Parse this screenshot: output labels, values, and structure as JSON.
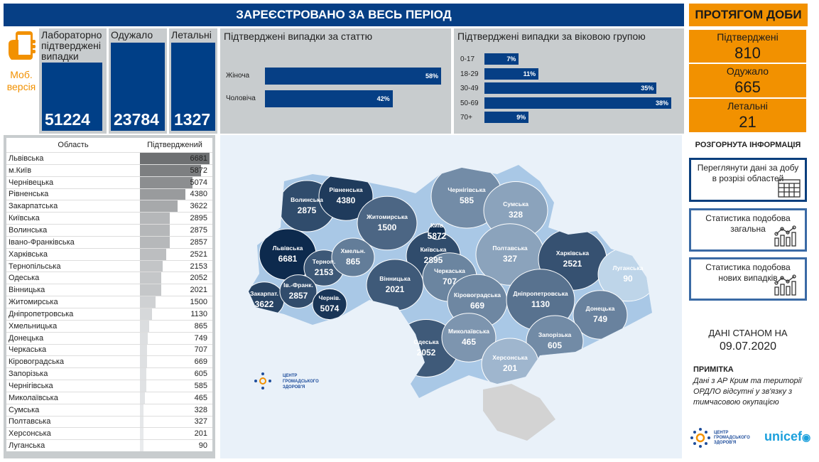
{
  "header": {
    "title": "ЗАРЕЄСТРОВАНО ЗА ВЕСЬ ПЕРІОД",
    "daily_title": "ПРОТЯГОМ ДОБИ"
  },
  "mobile": {
    "label": "Моб. версія",
    "icon": "smartphone-hand-icon"
  },
  "kpis": [
    {
      "label": "Лабораторно підтверджені випадки",
      "value": "51224"
    },
    {
      "label": "Одужало",
      "value": "23784"
    },
    {
      "label": "Летальні",
      "value": "1327"
    }
  ],
  "gender": {
    "title": "Підтверджені випадки за статтю",
    "items": [
      {
        "label": "Жіноча",
        "pct": 58,
        "text": "58%"
      },
      {
        "label": "Чоловіча",
        "pct": 42,
        "text": "42%"
      }
    ]
  },
  "age": {
    "title": "Підтверджені випадки за віковою групою",
    "items": [
      {
        "label": "0-17",
        "pct": 7,
        "text": "7%"
      },
      {
        "label": "18-29",
        "pct": 11,
        "text": "11%"
      },
      {
        "label": "30-49",
        "pct": 35,
        "text": "35%"
      },
      {
        "label": "50-69",
        "pct": 38,
        "text": "38%"
      },
      {
        "label": "70+",
        "pct": 9,
        "text": "9%"
      }
    ]
  },
  "daily": [
    {
      "label": "Підтверджені",
      "value": "810"
    },
    {
      "label": "Одужало",
      "value": "665"
    },
    {
      "label": "Летальні",
      "value": "21"
    }
  ],
  "table": {
    "col1": "Область",
    "col2": "Підтверджений",
    "rows": [
      [
        "Львівська",
        6681
      ],
      [
        "м.Київ",
        5872
      ],
      [
        "Чернівецька",
        5074
      ],
      [
        "Рівненська",
        4380
      ],
      [
        "Закарпатська",
        3622
      ],
      [
        "Київська",
        2895
      ],
      [
        "Волинська",
        2875
      ],
      [
        "Івано-Франківська",
        2857
      ],
      [
        "Харківська",
        2521
      ],
      [
        "Тернопільська",
        2153
      ],
      [
        "Одеська",
        2052
      ],
      [
        "Вінницька",
        2021
      ],
      [
        "Житомирська",
        1500
      ],
      [
        "Дніпропетровська",
        1130
      ],
      [
        "Хмельницька",
        865
      ],
      [
        "Донецька",
        749
      ],
      [
        "Черкаська",
        707
      ],
      [
        "Кіровоградська",
        669
      ],
      [
        "Запорізька",
        605
      ],
      [
        "Чернігівська",
        585
      ],
      [
        "Миколаївська",
        465
      ],
      [
        "Сумська",
        328
      ],
      [
        "Полтавська",
        327
      ],
      [
        "Херсонська",
        201
      ],
      [
        "Луганська",
        90
      ]
    ]
  },
  "map": {
    "regions": [
      {
        "name": "Волинська",
        "value": "2875",
        "v": 2875
      },
      {
        "name": "Рівненська",
        "value": "4380",
        "v": 4380
      },
      {
        "name": "Житомирська",
        "value": "1500",
        "v": 1500
      },
      {
        "name": "Чернігівська",
        "value": "585",
        "v": 585
      },
      {
        "name": "Сумська",
        "value": "328",
        "v": 328
      },
      {
        "name": "Київська",
        "value": "2895",
        "v": 2895
      },
      {
        "name": "Львівська",
        "value": "6681",
        "v": 6681
      },
      {
        "name": "Терноп.",
        "value": "2153",
        "v": 2153
      },
      {
        "name": "Хмельн.",
        "value": "865",
        "v": 865
      },
      {
        "name": "Полтавська",
        "value": "327",
        "v": 327
      },
      {
        "name": "Харківська",
        "value": "2521",
        "v": 2521
      },
      {
        "name": "Луганська",
        "value": "90",
        "v": 90
      },
      {
        "name": "Закарпат.",
        "value": "3622",
        "v": 3622
      },
      {
        "name": "Ів.-Франк.",
        "value": "2857",
        "v": 2857
      },
      {
        "name": "Чернів.",
        "value": "5074",
        "v": 5074
      },
      {
        "name": "Вінницька",
        "value": "2021",
        "v": 2021
      },
      {
        "name": "Черкаська",
        "value": "707",
        "v": 707
      },
      {
        "name": "Кіровоградська",
        "value": "669",
        "v": 669
      },
      {
        "name": "Дніпропетровська",
        "value": "1130",
        "v": 1130
      },
      {
        "name": "Донецька",
        "value": "749",
        "v": 749
      },
      {
        "name": "Одеська",
        "value": "2052",
        "v": 2052
      },
      {
        "name": "Миколаївська",
        "value": "465",
        "v": 465
      },
      {
        "name": "Запорізька",
        "value": "605",
        "v": 605
      },
      {
        "name": "Херсонська",
        "value": "201",
        "v": 201
      },
      {
        "name": "Київ",
        "value": "5872",
        "v": 5872
      }
    ],
    "logo": "ЦЕНТР ГРОМАДСЬКОГО ЗДОРОВ'Я"
  },
  "side": {
    "title": "РОЗГОРНУТА ІНФОРМАЦІЯ",
    "buttons": [
      "Переглянути дані за добу в розрізі областей",
      "Статистика подобова загальна",
      "Статистика подобова нових випадків"
    ],
    "date_label": "ДАНІ СТАНОМ НА",
    "date": "09.07.2020",
    "note_title": "ПРИМІТКА",
    "note": "Дані з АР Крим та території ОРДЛО відсутні у зв'язку з тимчасовою окупацією",
    "logo1": "ЦЕНТР ГРОМАДСЬКОГО ЗДОРОВ'Я",
    "logo2": "unicef"
  },
  "colors": {
    "blue": "#063f85",
    "orange": "#f29100",
    "panel": "#c8ccce"
  }
}
